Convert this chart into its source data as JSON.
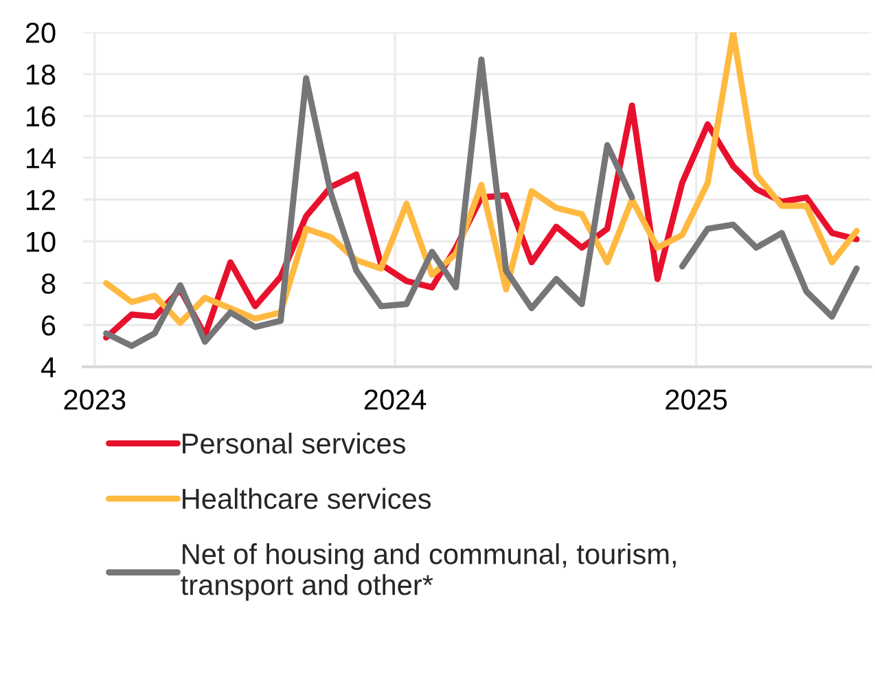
{
  "chart_data": {
    "type": "line",
    "x": [
      "2023-01-15",
      "2023-02-15",
      "2023-03-15",
      "2023-04-15",
      "2023-05-15",
      "2023-06-15",
      "2023-07-15",
      "2023-08-15",
      "2023-09-15",
      "2023-10-15",
      "2023-11-15",
      "2023-12-15",
      "2024-01-15",
      "2024-02-15",
      "2024-03-15",
      "2024-04-15",
      "2024-05-15",
      "2024-06-15",
      "2024-07-15",
      "2024-08-15",
      "2024-09-15",
      "2024-10-15",
      "2024-11-15",
      "2024-12-15",
      "2025-01-15",
      "2025-02-15",
      "2025-03-15",
      "2025-04-15",
      "2025-05-15",
      "2025-06-15",
      "2025-07-15"
    ],
    "series": [
      {
        "name": "Personal services",
        "color": "#e8112d",
        "values": [
          5.4,
          6.5,
          6.4,
          7.7,
          5.5,
          9.0,
          6.9,
          8.3,
          11.2,
          12.6,
          13.2,
          8.9,
          8.1,
          7.8,
          9.7,
          12.1,
          12.2,
          9.0,
          10.7,
          9.7,
          10.6,
          16.5,
          8.2,
          12.8,
          15.6,
          13.6,
          12.5,
          11.9,
          12.1,
          10.4,
          10.1
        ]
      },
      {
        "name": "Healthcare services",
        "color": "#ffb940",
        "values": [
          8.0,
          7.1,
          7.4,
          6.1,
          7.3,
          6.8,
          6.3,
          6.6,
          10.6,
          10.2,
          9.1,
          8.7,
          11.8,
          8.4,
          9.4,
          12.7,
          7.7,
          12.4,
          11.6,
          11.3,
          9.0,
          12.0,
          9.7,
          10.3,
          12.8,
          20.0,
          13.2,
          11.7,
          11.7,
          9.0,
          10.5
        ]
      },
      {
        "name": "Net of housing and communal, tourism,\ntransport and other*",
        "color": "#767679",
        "values": [
          5.6,
          5.0,
          5.6,
          7.9,
          5.2,
          6.6,
          5.9,
          6.2,
          17.8,
          12.3,
          8.6,
          6.9,
          7.0,
          9.5,
          7.8,
          18.7,
          8.6,
          6.8,
          8.2,
          7.0,
          14.6,
          12.1,
          null,
          8.8,
          10.6,
          10.8,
          9.7,
          10.4,
          7.6,
          6.4,
          8.7
        ]
      }
    ],
    "xlim": [
      "2022-12-18",
      "2025-08-01"
    ],
    "xticks": [
      {
        "value": "2023-01-01",
        "label": "2023"
      },
      {
        "value": "2024-01-01",
        "label": "2024"
      },
      {
        "value": "2025-01-01",
        "label": "2025"
      }
    ],
    "ylim": [
      4,
      20
    ],
    "yticks": [
      4,
      6,
      8,
      10,
      12,
      14,
      16,
      18,
      20
    ],
    "grid": true,
    "legend": "bottom",
    "line_style": "solid"
  }
}
